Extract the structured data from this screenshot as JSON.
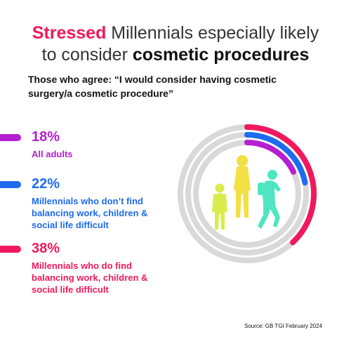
{
  "title": {
    "accent": "Stressed",
    "part1": " Millennials especially likely",
    "part2": "to consider ",
    "bold": "cosmetic procedures"
  },
  "subtitle": "Those who agree: “I would consider having cosmetic surgery/a cosmetic procedure”",
  "source": "Source: GB TGI February 2024",
  "colors": {
    "all_adults": "#b51fd1",
    "no_difficulty": "#1e6bf0",
    "difficulty": "#f0195e",
    "track": "#d9d9d9",
    "figure_left": "#d8ec4e",
    "figure_middle": "#f2e044",
    "figure_right": "#4ee6c2"
  },
  "chart_data": {
    "type": "radial-bar",
    "max": 100,
    "series": [
      {
        "name": "All adults",
        "value": 18,
        "label": "18%"
      },
      {
        "name": "Millennials who don’t find balancing work, children & social life difficult",
        "value": 22,
        "label": "22%"
      },
      {
        "name": "Millennials who do find balancing work, children & social life difficult",
        "value": 38,
        "label": "38%"
      }
    ]
  }
}
